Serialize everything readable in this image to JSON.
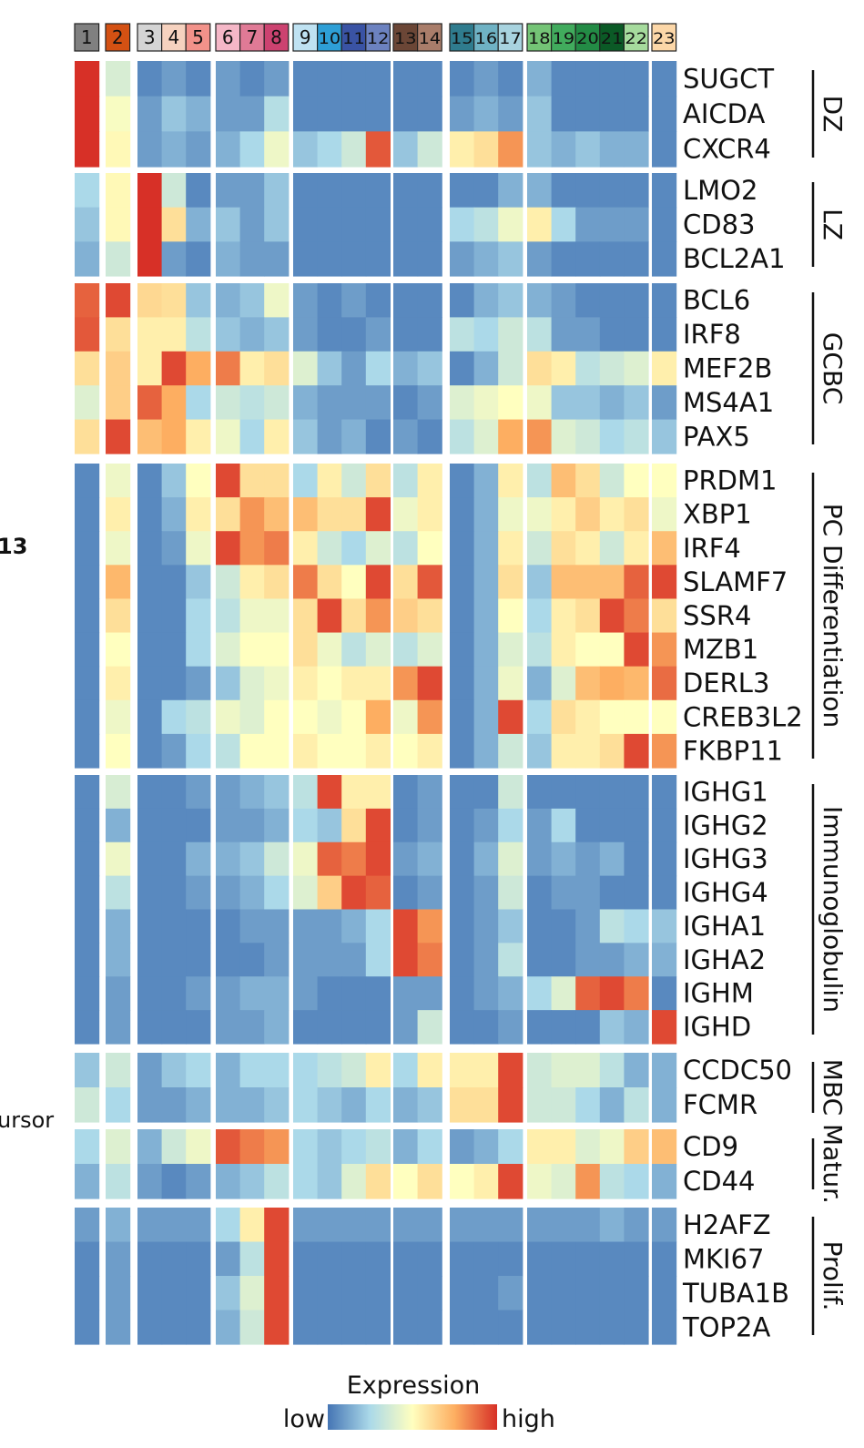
{
  "chart_data": {
    "type": "heatmap",
    "clusters": [
      "1",
      "2",
      "3",
      "4",
      "5",
      "6",
      "7",
      "8",
      "9",
      "10",
      "11",
      "12",
      "13",
      "14",
      "15",
      "16",
      "17",
      "18",
      "19",
      "20",
      "21",
      "22",
      "23"
    ],
    "cluster_colors": [
      "#808080",
      "#d45113",
      "#d4d4d4",
      "#f6d2bf",
      "#f2928a",
      "#f5b7c7",
      "#e07a96",
      "#cc4270",
      "#bfe2f2",
      "#2e9fd6",
      "#3a53a4",
      "#6c82c0",
      "#6b4636",
      "#a97d6a",
      "#2f7c8e",
      "#6fb2c4",
      "#a8d3df",
      "#74c476",
      "#41ab5d",
      "#238b45",
      "#0b5a26",
      "#a6db9d",
      "#fcd7a8"
    ],
    "groups": [
      {
        "name": "DZ",
        "genes": [
          "SUGCT",
          "AICDA",
          "CXCR4"
        ]
      },
      {
        "name": "LZ",
        "genes": [
          "LMO2",
          "CD83",
          "BCL2A1"
        ]
      },
      {
        "name": "GCBC",
        "genes": [
          "BCL6",
          "IRF8",
          "MEF2B",
          "MS4A1",
          "PAX5"
        ]
      },
      {
        "name": "PC Differentiation",
        "genes": [
          "PRDM1",
          "XBP1",
          "IRF4",
          "SLAMF7",
          "SSR4",
          "MZB1",
          "DERL3",
          "CREB3L2",
          "FKBP11"
        ]
      },
      {
        "name": "Immunoglobulin",
        "genes": [
          "IGHG1",
          "IGHG2",
          "IGHG3",
          "IGHG4",
          "IGHA1",
          "IGHA2",
          "IGHM",
          "IGHD"
        ]
      },
      {
        "name": "MBC",
        "genes": [
          "CCDC50",
          "FCMR"
        ]
      },
      {
        "name": "Matur.",
        "genes": [
          "CD9",
          "CD44"
        ]
      },
      {
        "name": "Prolif.",
        "genes": [
          "H2AFZ",
          "MKI67",
          "TUBA1B",
          "TOP2A"
        ]
      }
    ],
    "values": [
      [
        1,
        0.38,
        0.05,
        0.1,
        0.05,
        0.1,
        0.05,
        0.1,
        0.05,
        0.05,
        0.05,
        0.05,
        0.05,
        0.05,
        0.05,
        0.1,
        0.05,
        0.15,
        0.05,
        0.05,
        0.05,
        0.05,
        0.05
      ],
      [
        1,
        0.48,
        0.1,
        0.2,
        0.15,
        0.1,
        0.1,
        0.28,
        0.05,
        0.05,
        0.05,
        0.05,
        0.05,
        0.05,
        0.1,
        0.15,
        0.1,
        0.2,
        0.05,
        0.05,
        0.05,
        0.05,
        0.05
      ],
      [
        1,
        0.52,
        0.1,
        0.15,
        0.1,
        0.15,
        0.25,
        0.45,
        0.2,
        0.25,
        0.35,
        0.92,
        0.2,
        0.35,
        0.55,
        0.6,
        0.8,
        0.2,
        0.15,
        0.2,
        0.15,
        0.15,
        0.05
      ],
      [
        0.25,
        0.52,
        1,
        0.35,
        0.05,
        0.1,
        0.1,
        0.2,
        0.05,
        0.05,
        0.05,
        0.05,
        0.05,
        0.05,
        0.05,
        0.05,
        0.15,
        0.15,
        0.05,
        0.05,
        0.05,
        0.05,
        0.05
      ],
      [
        0.2,
        0.52,
        1,
        0.6,
        0.15,
        0.2,
        0.1,
        0.2,
        0.05,
        0.05,
        0.05,
        0.05,
        0.05,
        0.05,
        0.25,
        0.3,
        0.45,
        0.55,
        0.25,
        0.1,
        0.1,
        0.1,
        0.05
      ],
      [
        0.15,
        0.35,
        1,
        0.1,
        0.05,
        0.15,
        0.1,
        0.1,
        0.05,
        0.05,
        0.05,
        0.05,
        0.05,
        0.05,
        0.1,
        0.15,
        0.2,
        0.1,
        0.05,
        0.05,
        0.05,
        0.05,
        0.05
      ],
      [
        0.9,
        0.95,
        0.62,
        0.6,
        0.2,
        0.15,
        0.2,
        0.45,
        0.1,
        0.05,
        0.1,
        0.05,
        0.05,
        0.05,
        0.05,
        0.15,
        0.2,
        0.15,
        0.1,
        0.05,
        0.05,
        0.05,
        0.05
      ],
      [
        0.92,
        0.6,
        0.55,
        0.55,
        0.3,
        0.2,
        0.15,
        0.2,
        0.1,
        0.05,
        0.05,
        0.1,
        0.05,
        0.05,
        0.3,
        0.25,
        0.35,
        0.3,
        0.1,
        0.1,
        0.05,
        0.05,
        0.05
      ],
      [
        0.6,
        0.65,
        0.55,
        0.95,
        0.75,
        0.85,
        0.55,
        0.6,
        0.4,
        0.2,
        0.1,
        0.25,
        0.15,
        0.2,
        0.05,
        0.15,
        0.35,
        0.6,
        0.55,
        0.3,
        0.35,
        0.4,
        0.55
      ],
      [
        0.4,
        0.65,
        0.9,
        0.75,
        0.25,
        0.35,
        0.3,
        0.35,
        0.15,
        0.1,
        0.1,
        0.1,
        0.05,
        0.1,
        0.4,
        0.45,
        0.5,
        0.45,
        0.2,
        0.2,
        0.15,
        0.2,
        0.1
      ],
      [
        0.6,
        0.95,
        0.7,
        0.75,
        0.55,
        0.45,
        0.25,
        0.55,
        0.2,
        0.1,
        0.15,
        0.05,
        0.1,
        0.05,
        0.3,
        0.4,
        0.75,
        0.8,
        0.4,
        0.35,
        0.25,
        0.3,
        0.2
      ],
      [
        0.05,
        0.45,
        0.05,
        0.2,
        0.5,
        0.95,
        0.6,
        0.6,
        0.25,
        0.55,
        0.35,
        0.6,
        0.3,
        0.55,
        0.05,
        0.15,
        0.55,
        0.3,
        0.7,
        0.6,
        0.35,
        0.5,
        0.5
      ],
      [
        0.05,
        0.55,
        0.05,
        0.15,
        0.55,
        0.6,
        0.8,
        0.7,
        0.7,
        0.6,
        0.6,
        0.95,
        0.45,
        0.55,
        0.05,
        0.15,
        0.45,
        0.45,
        0.55,
        0.65,
        0.55,
        0.6,
        0.45
      ],
      [
        0.05,
        0.45,
        0.05,
        0.1,
        0.45,
        0.95,
        0.8,
        0.85,
        0.55,
        0.35,
        0.25,
        0.4,
        0.3,
        0.5,
        0.05,
        0.15,
        0.55,
        0.35,
        0.6,
        0.55,
        0.35,
        0.55,
        0.7
      ],
      [
        0.05,
        0.72,
        0.05,
        0.05,
        0.2,
        0.35,
        0.55,
        0.6,
        0.85,
        0.6,
        0.5,
        0.95,
        0.6,
        0.92,
        0.05,
        0.15,
        0.6,
        0.2,
        0.7,
        0.7,
        0.7,
        0.9,
        0.95
      ],
      [
        0.05,
        0.6,
        0.05,
        0.05,
        0.25,
        0.3,
        0.45,
        0.45,
        0.6,
        0.95,
        0.6,
        0.8,
        0.65,
        0.6,
        0.05,
        0.15,
        0.5,
        0.25,
        0.55,
        0.6,
        0.95,
        0.85,
        0.6
      ],
      [
        0.05,
        0.5,
        0.05,
        0.05,
        0.25,
        0.4,
        0.5,
        0.5,
        0.6,
        0.45,
        0.3,
        0.4,
        0.3,
        0.4,
        0.05,
        0.15,
        0.4,
        0.3,
        0.55,
        0.5,
        0.5,
        0.95,
        0.8
      ],
      [
        0.05,
        0.55,
        0.05,
        0.05,
        0.1,
        0.2,
        0.4,
        0.45,
        0.55,
        0.5,
        0.55,
        0.55,
        0.8,
        0.95,
        0.05,
        0.15,
        0.45,
        0.15,
        0.4,
        0.7,
        0.75,
        0.72,
        0.88
      ],
      [
        0.05,
        0.45,
        0.05,
        0.25,
        0.3,
        0.45,
        0.4,
        0.5,
        0.5,
        0.45,
        0.5,
        0.75,
        0.45,
        0.8,
        0.05,
        0.15,
        0.95,
        0.25,
        0.6,
        0.55,
        0.5,
        0.5,
        0.5
      ],
      [
        0.05,
        0.5,
        0.05,
        0.1,
        0.25,
        0.3,
        0.5,
        0.5,
        0.55,
        0.5,
        0.5,
        0.55,
        0.5,
        0.55,
        0.05,
        0.15,
        0.35,
        0.2,
        0.55,
        0.55,
        0.6,
        0.95,
        0.8
      ],
      [
        0.05,
        0.38,
        0.05,
        0.05,
        0.1,
        0.1,
        0.15,
        0.2,
        0.3,
        0.95,
        0.55,
        0.55,
        0.05,
        0.1,
        0.05,
        0.05,
        0.35,
        0.05,
        0.05,
        0.05,
        0.05,
        0.05,
        0.05
      ],
      [
        0.05,
        0.15,
        0.05,
        0.05,
        0.05,
        0.1,
        0.1,
        0.15,
        0.25,
        0.2,
        0.6,
        0.95,
        0.05,
        0.1,
        0.05,
        0.1,
        0.25,
        0.1,
        0.25,
        0.05,
        0.05,
        0.05,
        0.05
      ],
      [
        0.05,
        0.45,
        0.05,
        0.05,
        0.15,
        0.15,
        0.2,
        0.35,
        0.45,
        0.9,
        0.85,
        0.95,
        0.1,
        0.15,
        0.05,
        0.15,
        0.4,
        0.1,
        0.15,
        0.1,
        0.15,
        0.05,
        0.05
      ],
      [
        0.05,
        0.3,
        0.05,
        0.05,
        0.1,
        0.1,
        0.15,
        0.25,
        0.4,
        0.65,
        0.95,
        0.9,
        0.05,
        0.1,
        0.05,
        0.1,
        0.35,
        0.05,
        0.1,
        0.1,
        0.05,
        0.05,
        0.05
      ],
      [
        0.05,
        0.15,
        0.05,
        0.05,
        0.05,
        0.05,
        0.1,
        0.1,
        0.1,
        0.1,
        0.15,
        0.25,
        0.95,
        0.8,
        0.05,
        0.1,
        0.2,
        0.05,
        0.05,
        0.1,
        0.3,
        0.25,
        0.2
      ],
      [
        0.05,
        0.15,
        0.05,
        0.05,
        0.05,
        0.05,
        0.05,
        0.1,
        0.1,
        0.1,
        0.1,
        0.25,
        0.95,
        0.85,
        0.05,
        0.1,
        0.3,
        0.05,
        0.05,
        0.1,
        0.1,
        0.15,
        0.15
      ],
      [
        0.05,
        0.1,
        0.05,
        0.05,
        0.1,
        0.1,
        0.15,
        0.15,
        0.1,
        0.05,
        0.05,
        0.05,
        0.1,
        0.1,
        0.05,
        0.1,
        0.15,
        0.25,
        0.4,
        0.9,
        0.95,
        0.85,
        0.05
      ],
      [
        0.05,
        0.1,
        0.05,
        0.05,
        0.05,
        0.1,
        0.1,
        0.15,
        0.05,
        0.05,
        0.05,
        0.05,
        0.1,
        0.35,
        0.05,
        0.05,
        0.1,
        0.05,
        0.05,
        0.05,
        0.2,
        0.15,
        0.95
      ],
      [
        0.2,
        0.35,
        0.1,
        0.2,
        0.25,
        0.15,
        0.25,
        0.25,
        0.25,
        0.3,
        0.35,
        0.55,
        0.25,
        0.55,
        0.55,
        0.55,
        0.95,
        0.35,
        0.4,
        0.4,
        0.3,
        0.15,
        0.15
      ],
      [
        0.35,
        0.25,
        0.1,
        0.1,
        0.15,
        0.15,
        0.15,
        0.2,
        0.25,
        0.2,
        0.15,
        0.25,
        0.15,
        0.2,
        0.6,
        0.6,
        0.95,
        0.35,
        0.35,
        0.25,
        0.15,
        0.3,
        0.15
      ],
      [
        0.25,
        0.4,
        0.15,
        0.35,
        0.45,
        0.92,
        0.85,
        0.8,
        0.25,
        0.2,
        0.25,
        0.3,
        0.15,
        0.25,
        0.1,
        0.15,
        0.25,
        0.55,
        0.55,
        0.4,
        0.45,
        0.65,
        0.7
      ],
      [
        0.15,
        0.3,
        0.1,
        0.05,
        0.1,
        0.15,
        0.2,
        0.3,
        0.25,
        0.2,
        0.4,
        0.6,
        0.5,
        0.6,
        0.5,
        0.55,
        0.95,
        0.45,
        0.4,
        0.8,
        0.3,
        0.25,
        0.15
      ],
      [
        0.1,
        0.15,
        0.1,
        0.1,
        0.1,
        0.25,
        0.55,
        0.95,
        0.1,
        0.1,
        0.1,
        0.1,
        0.1,
        0.1,
        0.1,
        0.1,
        0.1,
        0.1,
        0.1,
        0.1,
        0.15,
        0.1,
        0.1
      ],
      [
        0.05,
        0.1,
        0.05,
        0.05,
        0.05,
        0.1,
        0.3,
        0.95,
        0.05,
        0.05,
        0.05,
        0.05,
        0.05,
        0.05,
        0.05,
        0.05,
        0.05,
        0.05,
        0.05,
        0.05,
        0.05,
        0.05,
        0.05
      ],
      [
        0.05,
        0.1,
        0.05,
        0.05,
        0.05,
        0.2,
        0.4,
        0.95,
        0.05,
        0.05,
        0.05,
        0.05,
        0.05,
        0.05,
        0.05,
        0.05,
        0.1,
        0.05,
        0.05,
        0.05,
        0.05,
        0.05,
        0.05
      ],
      [
        0.05,
        0.1,
        0.05,
        0.05,
        0.05,
        0.15,
        0.35,
        0.95,
        0.05,
        0.05,
        0.05,
        0.05,
        0.05,
        0.05,
        0.05,
        0.05,
        0.05,
        0.05,
        0.05,
        0.05,
        0.05,
        0.05,
        0.05
      ]
    ],
    "color_scale": [
      "#4575b4",
      "#abd9e9",
      "#ffffbf",
      "#fdae61",
      "#d73027"
    ],
    "legend": {
      "title": "Expression",
      "low": "low",
      "high": "high"
    },
    "edge_text": {
      "left_top": "13",
      "left_bottom": "ursor"
    }
  }
}
